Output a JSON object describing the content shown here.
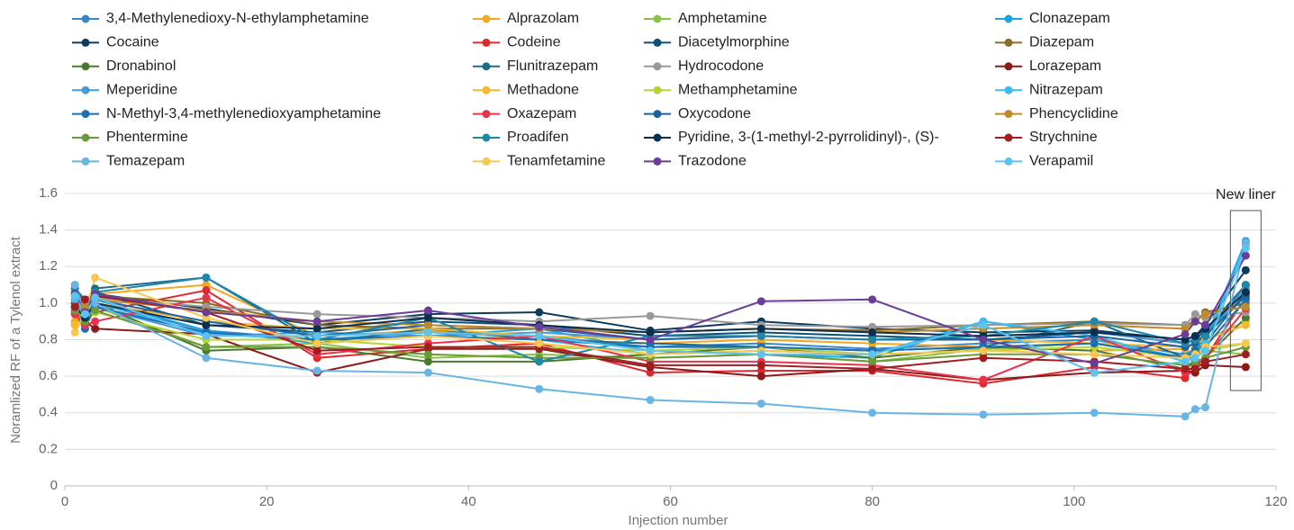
{
  "chart_data": {
    "type": "line",
    "y_label": "Noramlized RF of a Tylenol extract",
    "x_label": "Injection number",
    "annotation": "New liner",
    "xlim": [
      0,
      120
    ],
    "xticks": [
      0,
      20,
      40,
      60,
      80,
      100,
      120
    ],
    "ylim": [
      0,
      1.6
    ],
    "yticks": [
      0,
      0.2,
      0.4,
      0.6,
      0.8,
      {
        "value": 1,
        "label": "1.0"
      },
      1.2,
      1.4,
      1.6
    ],
    "grid": true,
    "x": [
      1,
      2,
      3,
      14,
      25,
      36,
      47,
      58,
      69,
      80,
      91,
      102,
      111,
      112,
      113,
      117
    ],
    "series": [
      {
        "name": "3,4-Methylenedioxy-N-ethylamphetamine",
        "color": "#3a87c8",
        "values": [
          0.95,
          0.88,
          1.0,
          0.85,
          0.8,
          0.84,
          0.82,
          0.76,
          0.78,
          0.75,
          0.78,
          0.8,
          0.72,
          0.75,
          0.82,
          1.05
        ]
      },
      {
        "name": "Alprazolam",
        "color": "#f5a623",
        "values": [
          0.9,
          0.95,
          1.05,
          1.1,
          0.82,
          0.85,
          0.8,
          0.78,
          0.8,
          0.78,
          0.76,
          0.74,
          0.75,
          0.78,
          0.8,
          0.9
        ]
      },
      {
        "name": "Amphetamine",
        "color": "#8bc34a",
        "values": [
          1.0,
          0.92,
          0.98,
          0.76,
          0.78,
          0.7,
          0.72,
          0.7,
          0.72,
          0.68,
          0.75,
          0.78,
          0.7,
          0.72,
          0.74,
          0.72
        ]
      },
      {
        "name": "Clonazepam",
        "color": "#1ea5e0",
        "values": [
          1.05,
          0.9,
          1.02,
          0.85,
          0.78,
          0.82,
          0.86,
          0.74,
          0.72,
          0.7,
          0.9,
          0.8,
          0.7,
          0.75,
          0.8,
          1.34
        ]
      },
      {
        "name": "Cocaine",
        "color": "#0d3b5e",
        "values": [
          1.0,
          0.95,
          1.05,
          0.97,
          0.88,
          0.94,
          0.95,
          0.85,
          0.9,
          0.86,
          0.84,
          0.85,
          0.8,
          0.82,
          0.88,
          1.18
        ]
      },
      {
        "name": "Codeine",
        "color": "#e0282e",
        "values": [
          1.0,
          0.9,
          0.95,
          1.07,
          0.7,
          0.75,
          0.78,
          0.62,
          0.63,
          0.63,
          0.56,
          0.65,
          0.59,
          0.65,
          0.7,
          1.03
        ]
      },
      {
        "name": "Diacetylmorphine",
        "color": "#0e4f7a",
        "values": [
          1.02,
          0.98,
          1.06,
          0.88,
          0.84,
          0.9,
          0.88,
          0.82,
          0.84,
          0.82,
          0.8,
          0.84,
          0.78,
          0.8,
          0.85,
          1.1
        ]
      },
      {
        "name": "Diazepam",
        "color": "#8a6a2b",
        "values": [
          1.06,
          1.0,
          1.04,
          1.0,
          0.88,
          0.86,
          0.86,
          0.84,
          0.86,
          0.85,
          0.88,
          0.9,
          0.88,
          0.9,
          0.95,
          1.0
        ]
      },
      {
        "name": "Dronabinol",
        "color": "#4a7a2e",
        "values": [
          0.96,
          0.92,
          1.0,
          0.74,
          0.76,
          0.68,
          0.68,
          0.72,
          0.76,
          0.7,
          0.76,
          0.74,
          0.64,
          0.68,
          0.7,
          0.92
        ]
      },
      {
        "name": "Flunitrazepam",
        "color": "#1d6c8c",
        "values": [
          1.08,
          1.0,
          1.08,
          1.14,
          0.78,
          0.86,
          0.8,
          0.78,
          0.76,
          0.74,
          0.76,
          0.9,
          0.7,
          0.74,
          0.78,
          1.06
        ]
      },
      {
        "name": "Hydrocodone",
        "color": "#999999",
        "values": [
          1.05,
          1.0,
          1.03,
          0.98,
          0.94,
          0.92,
          0.9,
          0.93,
          0.88,
          0.87,
          0.88,
          0.89,
          0.88,
          0.94,
          0.92,
          0.95
        ]
      },
      {
        "name": "Lorazepam",
        "color": "#8b1a1a",
        "values": [
          0.98,
          0.9,
          0.86,
          0.83,
          0.62,
          0.75,
          0.75,
          0.65,
          0.6,
          0.64,
          0.58,
          0.62,
          0.63,
          0.62,
          0.66,
          0.65
        ]
      },
      {
        "name": "Meperidine",
        "color": "#4a9ad6",
        "values": [
          1.1,
          0.92,
          0.98,
          0.82,
          0.84,
          0.82,
          0.84,
          0.8,
          0.82,
          0.8,
          0.82,
          0.84,
          0.78,
          0.8,
          0.82,
          1.08
        ]
      },
      {
        "name": "Methadone",
        "color": "#f7b82a",
        "values": [
          0.88,
          0.94,
          1.0,
          0.9,
          0.86,
          0.86,
          0.82,
          0.8,
          0.82,
          0.8,
          0.8,
          0.78,
          0.76,
          0.78,
          0.8,
          0.88
        ]
      },
      {
        "name": "Methamphetamine",
        "color": "#b5d334",
        "values": [
          0.98,
          0.9,
          0.95,
          0.8,
          0.8,
          0.76,
          0.76,
          0.74,
          0.76,
          0.72,
          0.74,
          0.76,
          0.7,
          0.72,
          0.74,
          0.78
        ]
      },
      {
        "name": "Nitrazepam",
        "color": "#3fbbef",
        "values": [
          1.02,
          0.92,
          1.0,
          0.83,
          0.8,
          0.82,
          0.8,
          0.72,
          0.74,
          0.72,
          0.9,
          0.82,
          0.68,
          0.72,
          0.78,
          1.32
        ]
      },
      {
        "name": "N-Methyl-3,4-methylenedioxyamphetamine",
        "color": "#1a6fb5",
        "values": [
          0.94,
          0.86,
          0.98,
          0.84,
          0.8,
          0.82,
          0.8,
          0.76,
          0.76,
          0.74,
          0.76,
          0.78,
          0.7,
          0.72,
          0.76,
          1.02
        ]
      },
      {
        "name": "Oxazepam",
        "color": "#e8334a",
        "values": [
          0.94,
          0.88,
          0.9,
          1.03,
          0.72,
          0.78,
          0.82,
          0.68,
          0.68,
          0.66,
          0.58,
          0.82,
          0.62,
          0.66,
          0.7,
          0.97
        ]
      },
      {
        "name": "Oxycodone",
        "color": "#1f62a0",
        "values": [
          1.04,
          0.96,
          1.02,
          0.9,
          0.82,
          0.88,
          0.86,
          0.8,
          0.82,
          0.8,
          0.8,
          0.82,
          0.76,
          0.78,
          0.82,
          1.04
        ]
      },
      {
        "name": "Phencyclidine",
        "color": "#c08a2a",
        "values": [
          1.04,
          0.98,
          1.02,
          0.96,
          0.9,
          0.88,
          0.86,
          0.84,
          0.86,
          0.84,
          0.86,
          0.88,
          0.86,
          0.9,
          0.94,
          0.98
        ]
      },
      {
        "name": "Phentermine",
        "color": "#6a9a3a",
        "values": [
          0.96,
          0.9,
          0.96,
          0.76,
          0.76,
          0.72,
          0.7,
          0.7,
          0.72,
          0.68,
          0.72,
          0.72,
          0.66,
          0.68,
          0.7,
          0.76
        ]
      },
      {
        "name": "Proadifen",
        "color": "#1f87a8",
        "values": [
          1.08,
          1.02,
          1.06,
          1.14,
          0.8,
          0.92,
          0.68,
          0.82,
          0.82,
          0.8,
          0.82,
          0.9,
          0.78,
          0.8,
          0.82,
          1.1
        ]
      },
      {
        "name": "Pyridine, 3-(1-methyl-2-pyrrolidinyl)-, (S)-",
        "color": "#0c2f4f",
        "values": [
          0.98,
          0.92,
          1.0,
          0.88,
          0.86,
          0.92,
          0.88,
          0.84,
          0.86,
          0.84,
          0.82,
          0.84,
          0.8,
          0.82,
          0.86,
          1.06
        ]
      },
      {
        "name": "Strychnine",
        "color": "#a01e22",
        "values": [
          0.98,
          1.02,
          1.04,
          0.95,
          0.74,
          0.76,
          0.76,
          0.66,
          0.66,
          0.64,
          0.7,
          0.68,
          0.64,
          0.64,
          0.68,
          0.72
        ]
      },
      {
        "name": "Temazepam",
        "color": "#6ab4e4",
        "values": [
          1.1,
          0.95,
          1.0,
          0.7,
          0.63,
          0.62,
          0.53,
          0.47,
          0.45,
          0.4,
          0.39,
          0.4,
          0.38,
          0.42,
          0.43,
          1.33
        ]
      },
      {
        "name": "Tenamfetamine",
        "color": "#f9c74f",
        "values": [
          0.84,
          0.95,
          1.14,
          0.92,
          0.78,
          0.82,
          0.78,
          0.72,
          0.74,
          0.72,
          0.74,
          0.72,
          0.7,
          0.72,
          0.76,
          0.78
        ]
      },
      {
        "name": "Trazodone",
        "color": "#6a3d9a",
        "values": [
          1.05,
          0.95,
          1.05,
          0.95,
          0.9,
          0.96,
          0.87,
          0.8,
          1.01,
          1.02,
          0.8,
          0.67,
          0.83,
          0.9,
          0.88,
          1.26
        ]
      },
      {
        "name": "Verapamil",
        "color": "#5cc3ef",
        "values": [
          1.04,
          0.94,
          1.03,
          0.82,
          0.82,
          0.84,
          0.82,
          0.74,
          0.72,
          0.72,
          0.88,
          0.62,
          0.68,
          0.7,
          0.74,
          1.3
        ]
      }
    ]
  }
}
